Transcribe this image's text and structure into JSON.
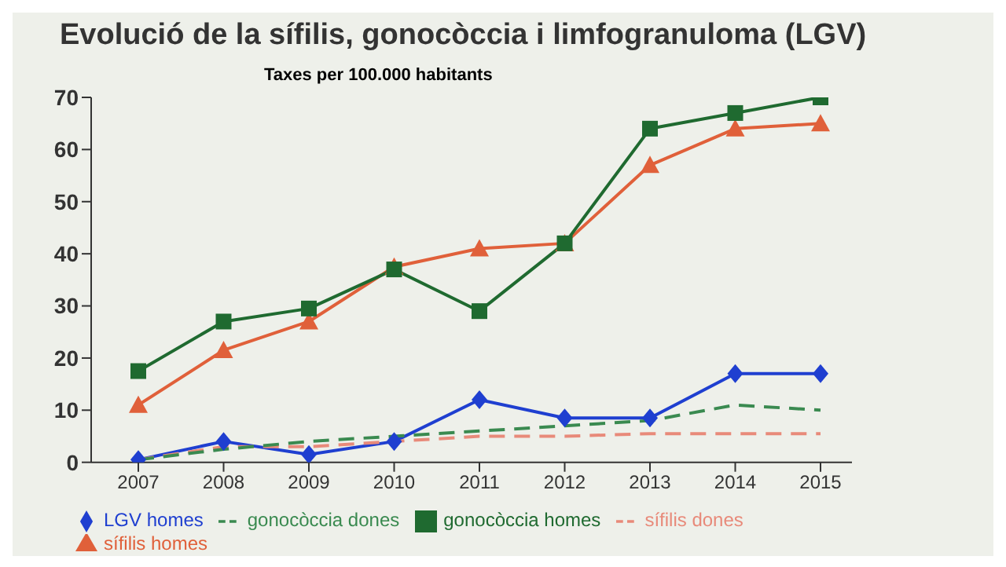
{
  "chart_data": {
    "type": "line",
    "title": "Evolució de la sífilis, gonocòccia i limfogranuloma (LGV)",
    "subtitle": "Taxes per 100.000 habitants",
    "categories": [
      "2007",
      "2008",
      "2009",
      "2010",
      "2011",
      "2012",
      "2013",
      "2014",
      "2015"
    ],
    "ylim": [
      0,
      70
    ],
    "yticks": [
      0,
      10,
      20,
      30,
      40,
      50,
      60,
      70
    ],
    "grid": false,
    "legend": "bottom",
    "series": [
      {
        "name": "LGV homes",
        "color": "#1f3fd0",
        "marker": "diamond",
        "line_style": "solid",
        "values": [
          0.5,
          4,
          1.5,
          4,
          12,
          8.5,
          8.5,
          17,
          17
        ]
      },
      {
        "name": "sífilis dones",
        "color": "#e88a7a",
        "marker": "none",
        "line_style": "dashed",
        "values": [
          0.5,
          3,
          3,
          4,
          5,
          5,
          5.5,
          5.5,
          5.5
        ]
      },
      {
        "name": "sífilis homes",
        "color": "#e0603a",
        "marker": "triangle",
        "line_style": "solid",
        "values": [
          11,
          21.5,
          27,
          37.5,
          41,
          42,
          57,
          64,
          65
        ]
      },
      {
        "name": "gonocòccia dones",
        "color": "#3a8a50",
        "marker": "none",
        "line_style": "dashed",
        "values": [
          0.5,
          2.5,
          4,
          5,
          6,
          7,
          8,
          11,
          10
        ]
      },
      {
        "name": "gonocòccia homes",
        "color": "#1f6a30",
        "marker": "square",
        "line_style": "solid",
        "values": [
          17.5,
          27,
          29.5,
          37,
          29,
          42,
          64,
          67,
          70
        ]
      }
    ]
  }
}
